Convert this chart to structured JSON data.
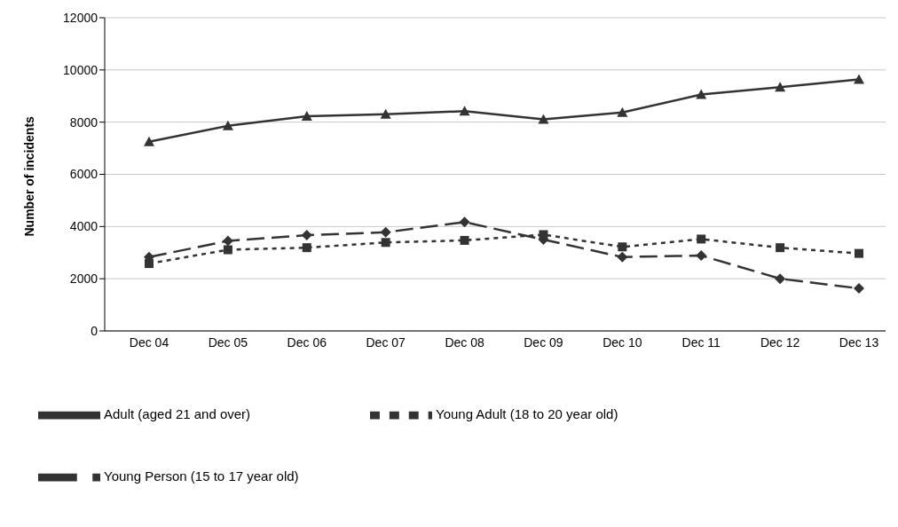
{
  "chart_data": {
    "type": "line",
    "ylabel": "Number of incidents",
    "categories": [
      "Dec 04",
      "Dec 05",
      "Dec 06",
      "Dec 07",
      "Dec 08",
      "Dec 09",
      "Dec 10",
      "Dec 11",
      "Dec 12",
      "Dec 13"
    ],
    "series": [
      {
        "name": "Young Person (15 to 17 year old)",
        "color": "#333333",
        "marker": "diamond",
        "line_style": "dashed",
        "values": [
          2830,
          3450,
          3670,
          3780,
          4170,
          3500,
          2830,
          2890,
          2000,
          1630
        ]
      },
      {
        "name": "Young Adult (18 to 20 year old)",
        "color": "#333333",
        "marker": "square",
        "line_style": "dotted",
        "values": [
          2580,
          3110,
          3190,
          3390,
          3470,
          3690,
          3220,
          3520,
          3190,
          2970
        ]
      },
      {
        "name": "Adult (aged 21 and over)",
        "color": "#333333",
        "marker": "triangle",
        "line_style": "solid",
        "values": [
          7250,
          7860,
          8230,
          8300,
          8420,
          8110,
          8370,
          9060,
          9340,
          9640
        ]
      }
    ],
    "ylim": [
      0,
      12000
    ],
    "yticks": [
      0,
      2000,
      4000,
      6000,
      8000,
      10000,
      12000
    ],
    "grid": "y",
    "legend": "bottom"
  }
}
